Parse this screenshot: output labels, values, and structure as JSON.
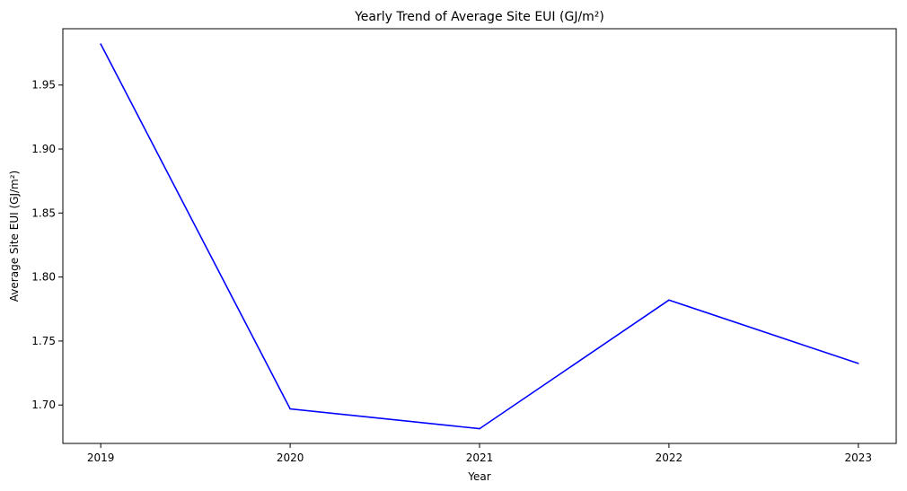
{
  "chart_data": {
    "type": "line",
    "title": "Yearly Trend of Average Site EUI (GJ/m²)",
    "xlabel": "Year",
    "ylabel": "Average Site EUI (GJ/m²)",
    "x": [
      "2019",
      "2020",
      "2021",
      "2022",
      "2023"
    ],
    "series": [
      {
        "values": [
          1.982,
          1.697,
          1.6815,
          1.782,
          1.7325
        ]
      }
    ],
    "xlim": [
      -0.2,
      4.2
    ],
    "ylim": [
      1.67,
      1.994
    ],
    "yticks": [
      1.7,
      1.75,
      1.8,
      1.85,
      1.9,
      1.95
    ],
    "ytick_labels": [
      "1.70",
      "1.75",
      "1.80",
      "1.85",
      "1.90",
      "1.95"
    ],
    "grid": false,
    "line_color": "#0000ff"
  }
}
